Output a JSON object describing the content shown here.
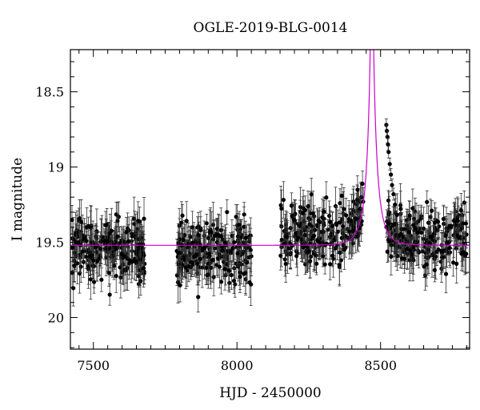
{
  "chart_data": {
    "type": "scatter",
    "title": "OGLE-2019-BLG-0014",
    "xlabel": "HJD - 2450000",
    "ylabel": "I magnitude",
    "xlim": [
      7420,
      8810
    ],
    "ylim": [
      20.21,
      18.22
    ],
    "y_inverted": true,
    "x_ticks": [
      7500,
      8000,
      8500
    ],
    "x_tick_labels": [
      "7500",
      "8000",
      "8500"
    ],
    "y_ticks": [
      18.5,
      19,
      19.5,
      20
    ],
    "y_tick_labels": [
      "18.5",
      "19",
      "19.5",
      "20"
    ],
    "grid": false,
    "legend": "none",
    "observing_seasons": [
      {
        "start": 7425,
        "end": 7680,
        "baseline_mag": 19.55
      },
      {
        "start": 7790,
        "end": 8050,
        "baseline_mag": 19.55
      },
      {
        "start": 8150,
        "end": 8440,
        "baseline_mag": 19.45
      },
      {
        "start": 8520,
        "end": 8800,
        "baseline_mag": 19.48
      }
    ],
    "series": [
      {
        "kind": "data",
        "marker": "filled-circle",
        "errorbars": true,
        "color": "#000000"
      },
      {
        "kind": "model",
        "color": "#cc00cc",
        "baseline_mag": 19.52,
        "peak_hjd": 8470,
        "u0": 0.1,
        "tE": 40,
        "blend_fraction": 0.5
      }
    ],
    "post_peak_points": [
      [
        8520,
        18.72
      ],
      [
        8522,
        18.76
      ],
      [
        8524,
        18.8
      ],
      [
        8526,
        18.85
      ],
      [
        8528,
        18.9
      ],
      [
        8532,
        18.98
      ],
      [
        8536,
        19.05
      ],
      [
        8540,
        19.12
      ],
      [
        8545,
        19.18
      ],
      [
        8550,
        19.25
      ]
    ]
  }
}
